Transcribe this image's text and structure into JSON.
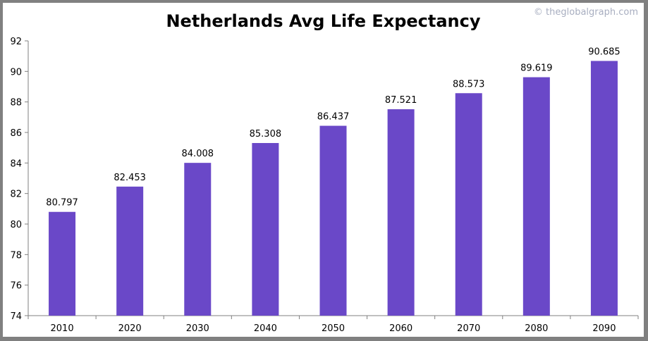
{
  "chart_data": {
    "type": "bar",
    "title": "Netherlands Avg Life Expectancy",
    "watermark": "© theglobalgraph.com",
    "categories": [
      "2010",
      "2020",
      "2030",
      "2040",
      "2050",
      "2060",
      "2070",
      "2080",
      "2090"
    ],
    "values": [
      80.797,
      82.453,
      84.008,
      85.308,
      86.437,
      87.521,
      88.573,
      89.619,
      90.685
    ],
    "data_labels": [
      "80.797",
      "82.453",
      "84.008",
      "85.308",
      "86.437",
      "87.521",
      "88.573",
      "89.619",
      "90.685"
    ],
    "ylim": [
      74,
      92
    ],
    "yticks": [
      74,
      76,
      78,
      80,
      82,
      84,
      86,
      88,
      90,
      92
    ],
    "grid": false,
    "bar_color": "#6a48c8",
    "xlabel": "",
    "ylabel": ""
  }
}
